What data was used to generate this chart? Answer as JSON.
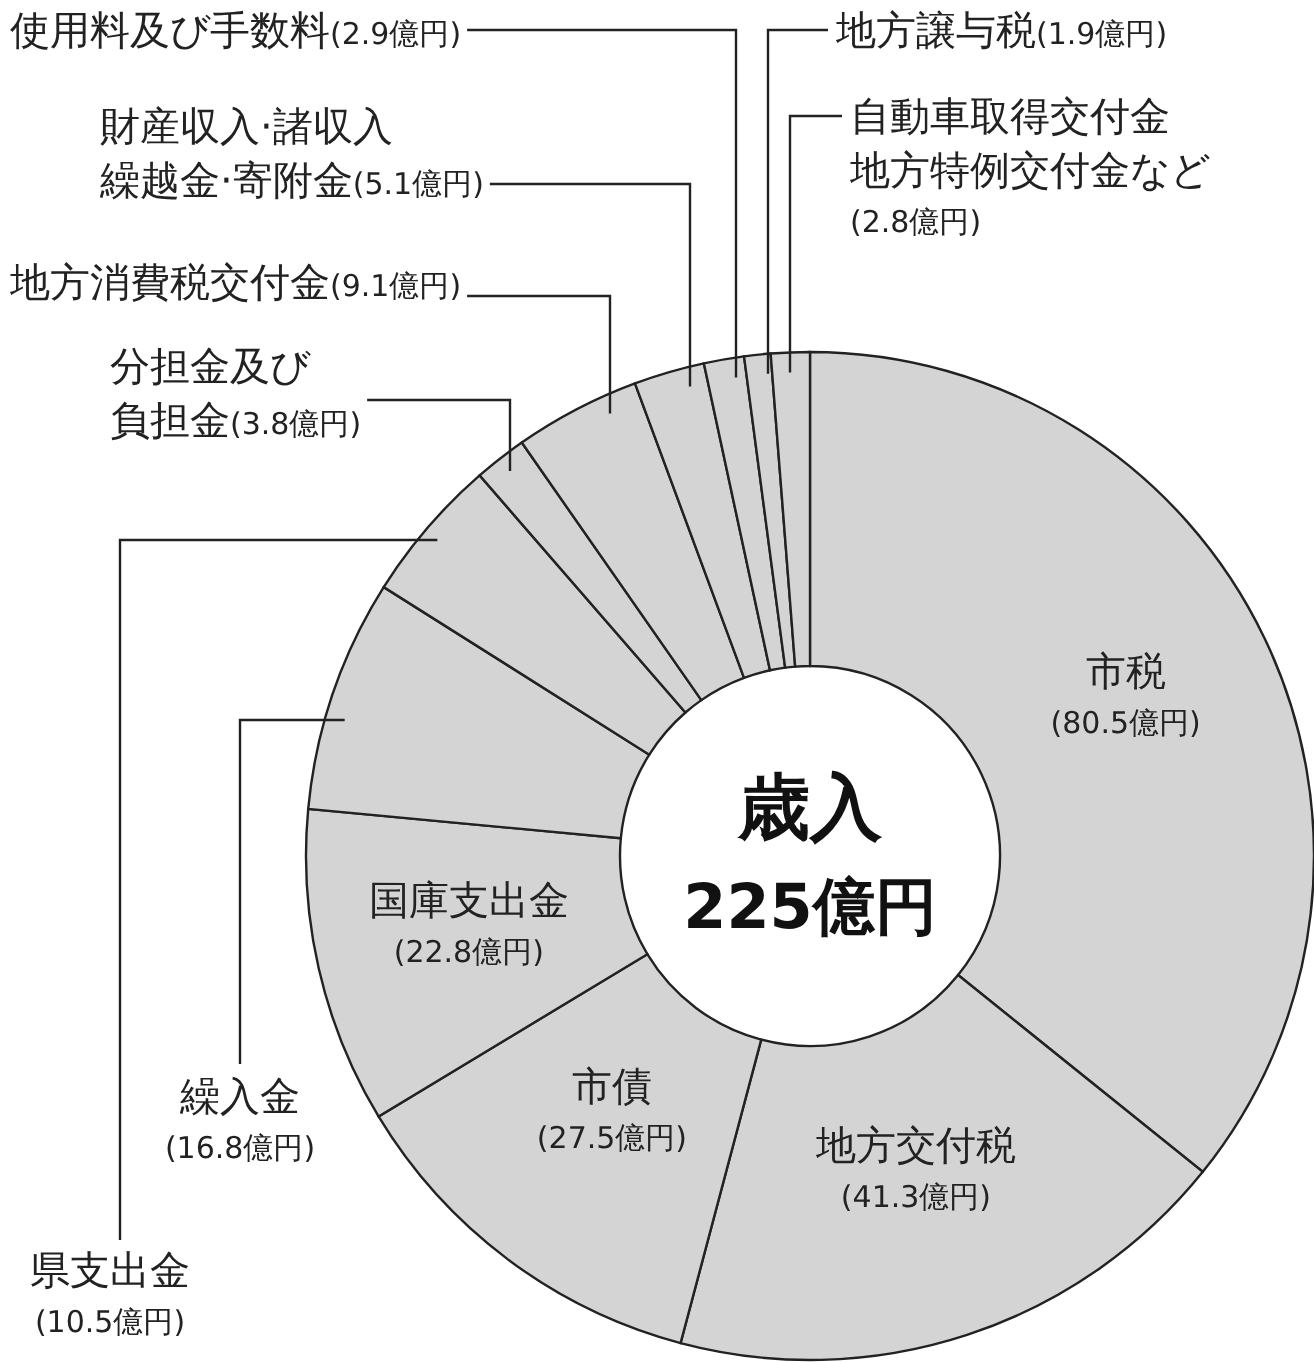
{
  "chart_data": {
    "type": "donut",
    "title": "歳入",
    "subtitle": "225億円",
    "categories": [
      "市税",
      "地方交付税",
      "市債",
      "国庫支出金",
      "繰入金",
      "県支出金",
      "分担金及び負担金",
      "地方消費税交付金",
      "財産収入·諸収入繰越金·寄附金",
      "使用料及び手数料",
      "地方譲与税",
      "自動車取得交付金地方特例交付金など"
    ],
    "values": [
      80.5,
      41.3,
      27.5,
      22.8,
      16.8,
      10.5,
      3.8,
      9.1,
      5.1,
      2.9,
      1.9,
      2.8
    ],
    "value_labels": [
      "(80.5億円)",
      "(41.3億円)",
      "(27.5億円)",
      "(22.8億円)",
      "(16.8億円)",
      "(10.5億円)",
      "(3.8億円)",
      "(9.1億円)",
      "(5.1億円)",
      "(2.9億円)",
      "(1.9億円)",
      "(2.8億円)"
    ],
    "colors": [
      "#d4d4d4",
      "#d4d4d4",
      "#d4d4d4",
      "#d4d4d4",
      "#d4d4d4",
      "#d4d4d4",
      "#d4d4d4",
      "#d4d4d4",
      "#d4d4d4",
      "#d4d4d4",
      "#d4d4d4",
      "#d4d4d4"
    ]
  }
}
